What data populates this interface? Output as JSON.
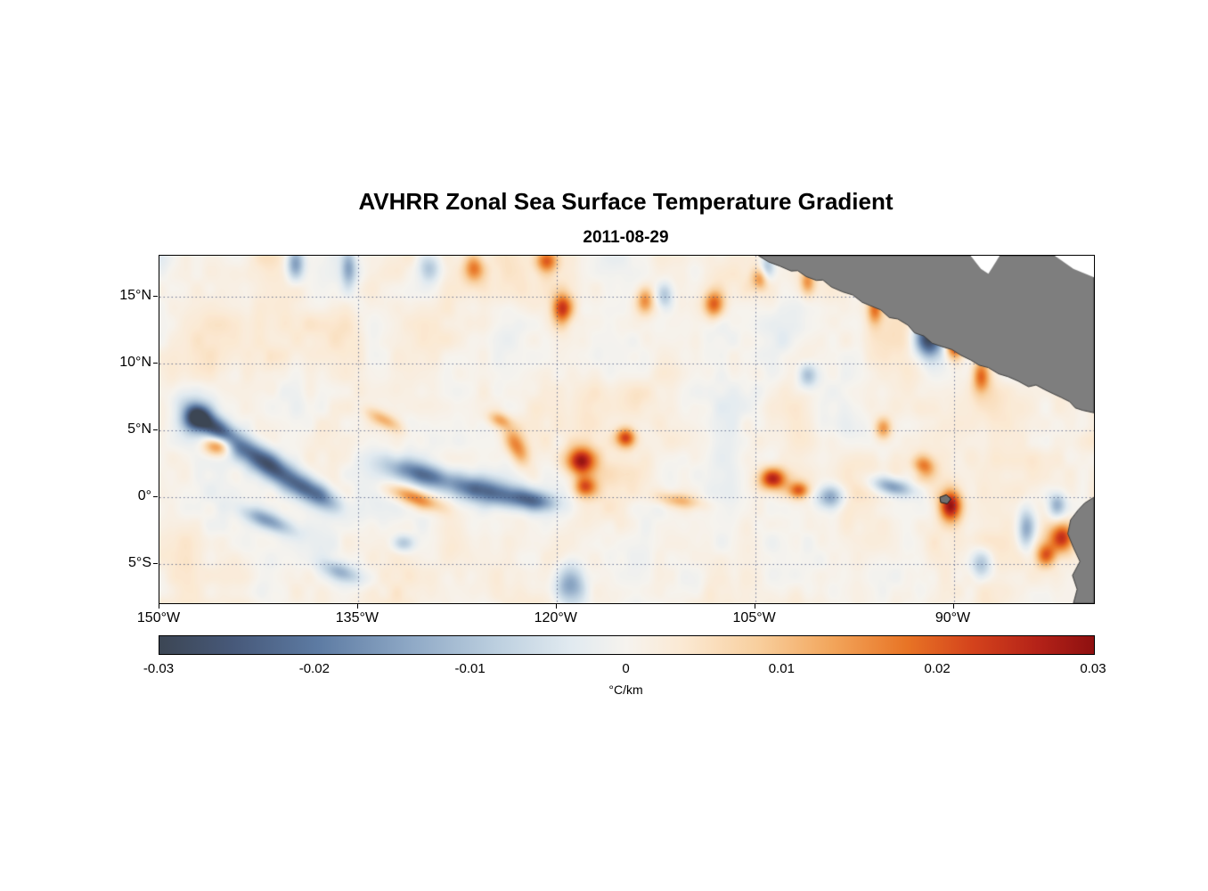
{
  "title": "AVHRR Zonal Sea Surface Temperature Gradient",
  "subtitle": "2011-08-29",
  "colors": {
    "background": "#ffffff",
    "axis": "#000000",
    "grid": "rgba(60,75,120,0.75)",
    "land_fill": "#7e7e7e",
    "land_edge": "#3d3d3d",
    "no_data": "#ffffff"
  },
  "chart_data": {
    "type": "heatmap",
    "title": "AVHRR Zonal Sea Surface Temperature Gradient",
    "subtitle": "2011-08-29",
    "units": "°C/km",
    "xlabel": "",
    "ylabel": "",
    "lon_range": [
      -150.0,
      -79.4
    ],
    "lat_range": [
      18.1,
      -7.95
    ],
    "lon_ticks": [
      {
        "value": -150,
        "label": "150°W"
      },
      {
        "value": -135,
        "label": "135°W"
      },
      {
        "value": -120,
        "label": "120°W"
      },
      {
        "value": -105,
        "label": "105°W"
      },
      {
        "value": -90,
        "label": "90°W"
      }
    ],
    "lat_ticks": [
      {
        "value": 15,
        "label": "15°N"
      },
      {
        "value": 10,
        "label": "10°N"
      },
      {
        "value": 5,
        "label": "5°N"
      },
      {
        "value": 0,
        "label": "0°"
      },
      {
        "value": -5,
        "label": "5°S"
      }
    ],
    "grid": "dotted",
    "colorbar": {
      "min": -0.03,
      "max": 0.03,
      "ticks": [
        "-0.03",
        "-0.02",
        "-0.01",
        "0",
        "0.01",
        "0.02",
        "0.03"
      ],
      "label": "°C/km",
      "stops": [
        {
          "p": 0.0,
          "c": "#3c4654"
        },
        {
          "p": 0.08,
          "c": "#47597a"
        },
        {
          "p": 0.17,
          "c": "#5d7ba3"
        },
        {
          "p": 0.27,
          "c": "#8fa9c6"
        },
        {
          "p": 0.36,
          "c": "#bccfdf"
        },
        {
          "p": 0.44,
          "c": "#e1eaf0"
        },
        {
          "p": 0.5,
          "c": "#f6f3ee"
        },
        {
          "p": 0.56,
          "c": "#fbe9d3"
        },
        {
          "p": 0.64,
          "c": "#f8cf9e"
        },
        {
          "p": 0.72,
          "c": "#f2a55b"
        },
        {
          "p": 0.8,
          "c": "#e87425"
        },
        {
          "p": 0.87,
          "c": "#d4431c"
        },
        {
          "p": 0.94,
          "c": "#b42218"
        },
        {
          "p": 1.0,
          "c": "#8e1010"
        }
      ]
    },
    "noise": {
      "seed": 911,
      "amplitude": 0.0062,
      "cells": [
        64,
        30,
        14
      ],
      "weights": [
        0.45,
        0.33,
        0.22
      ],
      "aniso": 1.35,
      "bias": 0.0012
    },
    "features": [
      [
        0.145,
        0.023,
        -0.016,
        7,
        13,
        0
      ],
      [
        0.202,
        0.036,
        -0.014,
        6,
        14,
        0
      ],
      [
        0.038,
        0.467,
        -0.022,
        10,
        12,
        45
      ],
      [
        0.059,
        0.497,
        -0.026,
        26,
        9,
        38
      ],
      [
        0.116,
        0.6,
        -0.027,
        32,
        10,
        35
      ],
      [
        0.166,
        0.682,
        -0.02,
        22,
        9,
        30
      ],
      [
        0.116,
        0.762,
        -0.016,
        22,
        7,
        22
      ],
      [
        0.278,
        0.626,
        -0.02,
        26,
        9,
        16
      ],
      [
        0.35,
        0.677,
        -0.024,
        30,
        10,
        13
      ],
      [
        0.4,
        0.703,
        -0.018,
        18,
        8,
        10
      ],
      [
        0.44,
        0.946,
        -0.018,
        12,
        16,
        0
      ],
      [
        0.717,
        0.692,
        -0.016,
        11,
        9,
        0
      ],
      [
        0.784,
        0.664,
        -0.018,
        16,
        7,
        12
      ],
      [
        0.814,
        0.621,
        -0.013,
        9,
        7,
        0
      ],
      [
        0.822,
        0.236,
        -0.03,
        11,
        15,
        0
      ],
      [
        0.927,
        0.785,
        -0.016,
        7,
        16,
        0
      ],
      [
        0.54,
        0.113,
        -0.012,
        7,
        11,
        0
      ],
      [
        0.65,
        0.036,
        -0.013,
        6,
        12,
        0
      ],
      [
        0.288,
        0.036,
        -0.011,
        9,
        11,
        0
      ],
      [
        0.193,
        0.908,
        -0.011,
        16,
        7,
        20
      ],
      [
        0.261,
        0.826,
        -0.012,
        9,
        7,
        0
      ],
      [
        0.879,
        0.887,
        -0.013,
        9,
        12,
        0
      ],
      [
        0.693,
        0.344,
        -0.012,
        8,
        10,
        0
      ],
      [
        0.96,
        0.715,
        -0.013,
        7,
        10,
        0
      ],
      [
        0.064,
        0.544,
        0.021,
        11,
        8,
        0
      ],
      [
        0.274,
        0.697,
        0.018,
        22,
        7,
        20
      ],
      [
        0.381,
        0.544,
        0.016,
        8,
        16,
        -25
      ],
      [
        0.45,
        0.59,
        0.026,
        12,
        11,
        0
      ],
      [
        0.455,
        0.664,
        0.018,
        9,
        8,
        0
      ],
      [
        0.498,
        0.523,
        0.022,
        8,
        8,
        0
      ],
      [
        0.336,
        0.036,
        0.016,
        8,
        11,
        0
      ],
      [
        0.414,
        0.013,
        0.018,
        9,
        9,
        0
      ],
      [
        0.431,
        0.151,
        0.02,
        8,
        12,
        0
      ],
      [
        0.519,
        0.128,
        0.016,
        7,
        11,
        0
      ],
      [
        0.593,
        0.138,
        0.018,
        8,
        11,
        0
      ],
      [
        0.643,
        0.067,
        0.014,
        7,
        9,
        0
      ],
      [
        0.656,
        0.641,
        0.026,
        11,
        9,
        0
      ],
      [
        0.684,
        0.674,
        0.019,
        9,
        7,
        0
      ],
      [
        0.774,
        0.497,
        0.014,
        7,
        9,
        0
      ],
      [
        0.817,
        0.613,
        0.024,
        9,
        9,
        0
      ],
      [
        0.846,
        0.718,
        0.028,
        9,
        13,
        0
      ],
      [
        0.85,
        0.256,
        0.024,
        7,
        11,
        0
      ],
      [
        0.879,
        0.344,
        0.02,
        7,
        14,
        0
      ],
      [
        0.965,
        0.81,
        0.024,
        10,
        12,
        0
      ],
      [
        0.948,
        0.862,
        0.018,
        8,
        9,
        0
      ],
      [
        0.765,
        0.151,
        0.016,
        6,
        12,
        0
      ],
      [
        0.24,
        0.472,
        0.011,
        16,
        6,
        28
      ],
      [
        0.555,
        0.703,
        0.011,
        18,
        6,
        8
      ],
      [
        0.793,
        0.036,
        0.014,
        7,
        9,
        0
      ],
      [
        0.364,
        0.472,
        0.012,
        10,
        6,
        20
      ],
      [
        0.693,
        0.074,
        0.013,
        6,
        10,
        0
      ]
    ],
    "land": [
      {
        "name": "central-america",
        "fill": "#7e7e7e",
        "stroke": "#3d3d3d",
        "points": [
          [
            0.641,
            0.0
          ],
          [
            1.0,
            0.0
          ],
          [
            1.0,
            0.452
          ],
          [
            0.988,
            0.445
          ],
          [
            0.98,
            0.438
          ],
          [
            0.974,
            0.42
          ],
          [
            0.965,
            0.408
          ],
          [
            0.957,
            0.398
          ],
          [
            0.947,
            0.385
          ],
          [
            0.938,
            0.372
          ],
          [
            0.93,
            0.377
          ],
          [
            0.919,
            0.361
          ],
          [
            0.908,
            0.348
          ],
          [
            0.898,
            0.34
          ],
          [
            0.887,
            0.322
          ],
          [
            0.877,
            0.315
          ],
          [
            0.868,
            0.3
          ],
          [
            0.858,
            0.287
          ],
          [
            0.848,
            0.27
          ],
          [
            0.838,
            0.262
          ],
          [
            0.827,
            0.252
          ],
          [
            0.818,
            0.231
          ],
          [
            0.808,
            0.222
          ],
          [
            0.801,
            0.2
          ],
          [
            0.79,
            0.182
          ],
          [
            0.781,
            0.178
          ],
          [
            0.772,
            0.156
          ],
          [
            0.76,
            0.143
          ],
          [
            0.752,
            0.134
          ],
          [
            0.742,
            0.113
          ],
          [
            0.731,
            0.104
          ],
          [
            0.719,
            0.09
          ],
          [
            0.71,
            0.07
          ],
          [
            0.703,
            0.071
          ],
          [
            0.692,
            0.06
          ],
          [
            0.683,
            0.043
          ],
          [
            0.676,
            0.044
          ],
          [
            0.664,
            0.03
          ],
          [
            0.652,
            0.018
          ]
        ]
      },
      {
        "name": "caribbean-notch",
        "fill": "#ffffff",
        "stroke": "none",
        "points": [
          [
            0.868,
            0.0
          ],
          [
            0.879,
            0.038
          ],
          [
            0.887,
            0.052
          ],
          [
            0.895,
            0.018
          ],
          [
            0.899,
            0.0
          ]
        ]
      },
      {
        "name": "caribbean-corner",
        "fill": "#ffffff",
        "stroke": "none",
        "points": [
          [
            0.958,
            0.0
          ],
          [
            1.0,
            0.0
          ],
          [
            1.0,
            0.062
          ],
          [
            0.978,
            0.038
          ]
        ]
      },
      {
        "name": "south-america",
        "fill": "#7e7e7e",
        "stroke": "#3d3d3d",
        "points": [
          [
            1.0,
            0.695
          ],
          [
            0.99,
            0.712
          ],
          [
            0.983,
            0.732
          ],
          [
            0.975,
            0.76
          ],
          [
            0.972,
            0.8
          ],
          [
            0.978,
            0.84
          ],
          [
            0.985,
            0.88
          ],
          [
            0.977,
            0.92
          ],
          [
            0.982,
            0.96
          ],
          [
            0.978,
            1.0
          ],
          [
            1.0,
            1.0
          ]
        ]
      },
      {
        "name": "galapagos-islands",
        "fill": "#6f6f6f",
        "stroke": "#1a1a1a",
        "points": [
          [
            0.835,
            0.695
          ],
          [
            0.842,
            0.688
          ],
          [
            0.847,
            0.7
          ],
          [
            0.843,
            0.714
          ],
          [
            0.836,
            0.71
          ]
        ]
      }
    ]
  }
}
